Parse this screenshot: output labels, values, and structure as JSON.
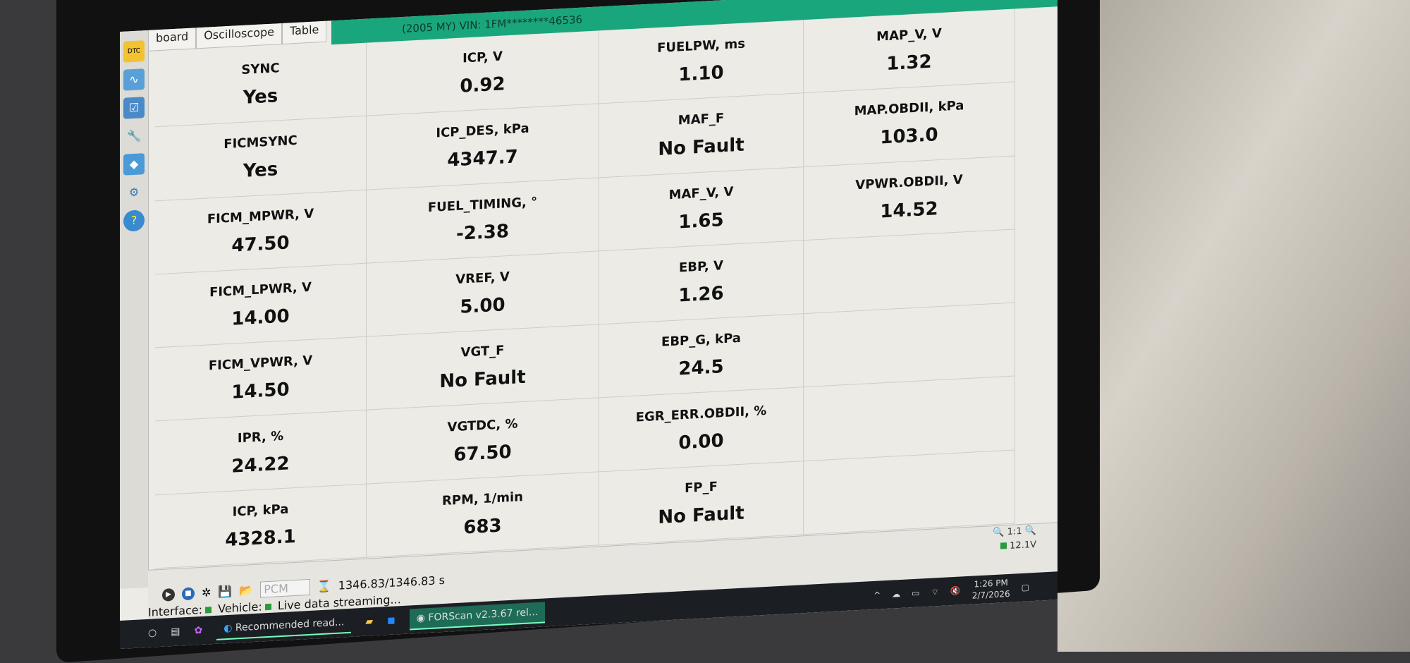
{
  "window": {
    "title": "(2005 MY) VIN: 1FM********46536",
    "controls": [
      "–",
      "▫",
      "×"
    ]
  },
  "tabs": [
    {
      "label": "board"
    },
    {
      "label": "Oscilloscope"
    },
    {
      "label": "Table"
    }
  ],
  "sidebar": {
    "icons": [
      "dtc-icon",
      "oscilloscope-icon",
      "checklist-icon",
      "wrench-icon",
      "module-chip-icon",
      "gear-icon",
      "service-tests-icon"
    ]
  },
  "columns": [
    [
      {
        "label": "SYNC",
        "value": "Yes"
      },
      {
        "label": "FICMSYNC",
        "value": "Yes"
      },
      {
        "label": "FICM_MPWR, V",
        "value": "47.50"
      },
      {
        "label": "FICM_LPWR, V",
        "value": "14.00"
      },
      {
        "label": "FICM_VPWR, V",
        "value": "14.50"
      },
      {
        "label": "IPR, %",
        "value": "24.22"
      },
      {
        "label": "ICP, kPa",
        "value": "4328.1"
      }
    ],
    [
      {
        "label": "ICP, V",
        "value": "0.92"
      },
      {
        "label": "ICP_DES, kPa",
        "value": "4347.7"
      },
      {
        "label": "FUEL_TIMING, °",
        "value": "-2.38"
      },
      {
        "label": "VREF, V",
        "value": "5.00"
      },
      {
        "label": "VGT_F",
        "value": "No Fault"
      },
      {
        "label": "VGTDC, %",
        "value": "67.50"
      },
      {
        "label": "RPM, 1/min",
        "value": "683"
      }
    ],
    [
      {
        "label": "FUELPW, ms",
        "value": "1.10"
      },
      {
        "label": "MAF_F",
        "value": "No Fault"
      },
      {
        "label": "MAF_V, V",
        "value": "1.65"
      },
      {
        "label": "EBP, V",
        "value": "1.26"
      },
      {
        "label": "EBP_G, kPa",
        "value": "24.5"
      },
      {
        "label": "EGR_ERR.OBDII, %",
        "value": "0.00"
      },
      {
        "label": "FP_F",
        "value": "No Fault"
      }
    ],
    [
      {
        "label": "MAP_V, V",
        "value": "1.32"
      },
      {
        "label": "MAP.OBDII, kPa",
        "value": "103.0"
      },
      {
        "label": "VPWR.OBDII, V",
        "value": "14.52"
      },
      {
        "label": "",
        "value": ""
      },
      {
        "label": "",
        "value": ""
      },
      {
        "label": "",
        "value": ""
      },
      {
        "label": "",
        "value": ""
      }
    ]
  ],
  "bottom": {
    "module": "PCM",
    "time": "1346.83/1346.83 s",
    "zoom": "1:1",
    "voltage": "12.1V"
  },
  "status": {
    "interface": "Interface:",
    "vehicle": "Vehicle:",
    "message": "Live data streaming...",
    "indicator_color": "#2a9a3a"
  },
  "taskbar": {
    "items": [
      {
        "label": "Recommended read..."
      },
      {
        "label": "FORScan v2.3.67 rel..."
      }
    ],
    "time": "1:26 PM",
    "date": "2/7/2026"
  },
  "colors": {
    "titlebar": "#1aa67c"
  }
}
